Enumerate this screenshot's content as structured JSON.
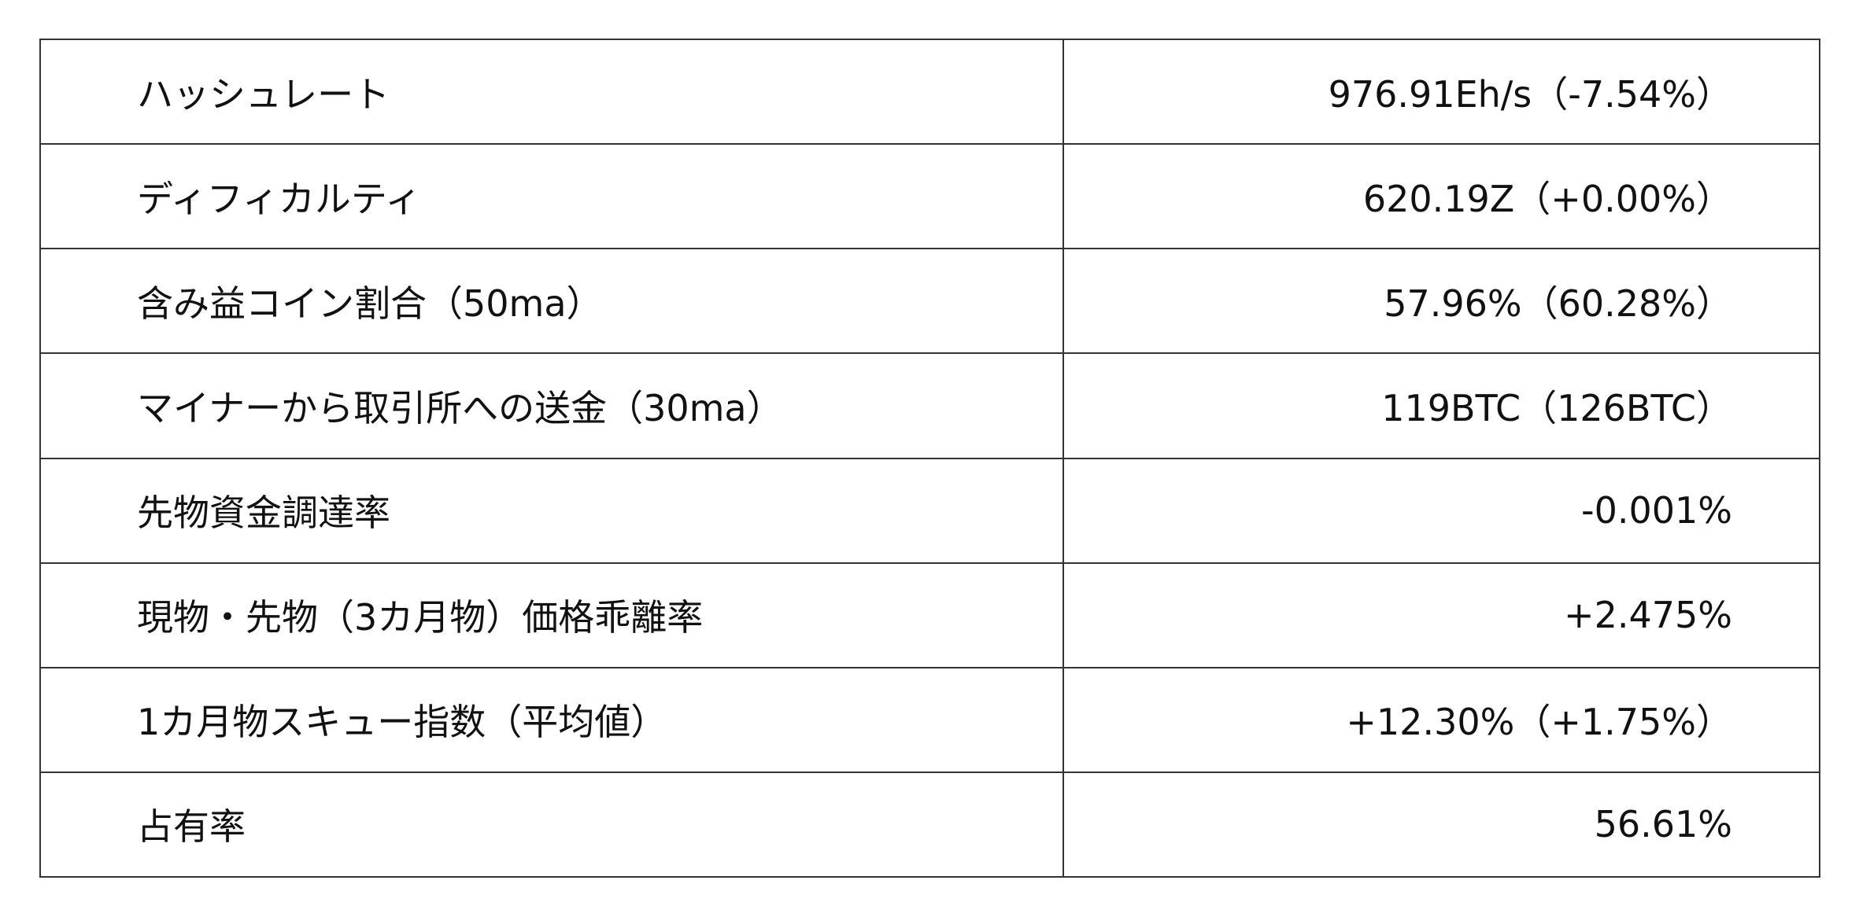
{
  "rows": [
    {
      "label": "ハッシュレート",
      "value": "976.91Eh/s（-7.54%）"
    },
    {
      "label": "ディフィカルティ",
      "value": "620.19Z（+0.00%）"
    },
    {
      "label": "含み益コイン割合（50ma）",
      "value": "57.96%（60.28%）"
    },
    {
      "label": "マイナーから取引所への送金（30ma）",
      "value": "119BTC（126BTC）"
    },
    {
      "label": "先物資金調達率",
      "value": "-0.001%"
    },
    {
      "label": "現物・先物（3カ月物）価格乖離率",
      "value": "+2.475%"
    },
    {
      "label": "1カ月物スキュー指数（平均値）",
      "value": "+12.30%（+1.75%）"
    },
    {
      "label": "占有率",
      "value": "56.61%"
    }
  ]
}
